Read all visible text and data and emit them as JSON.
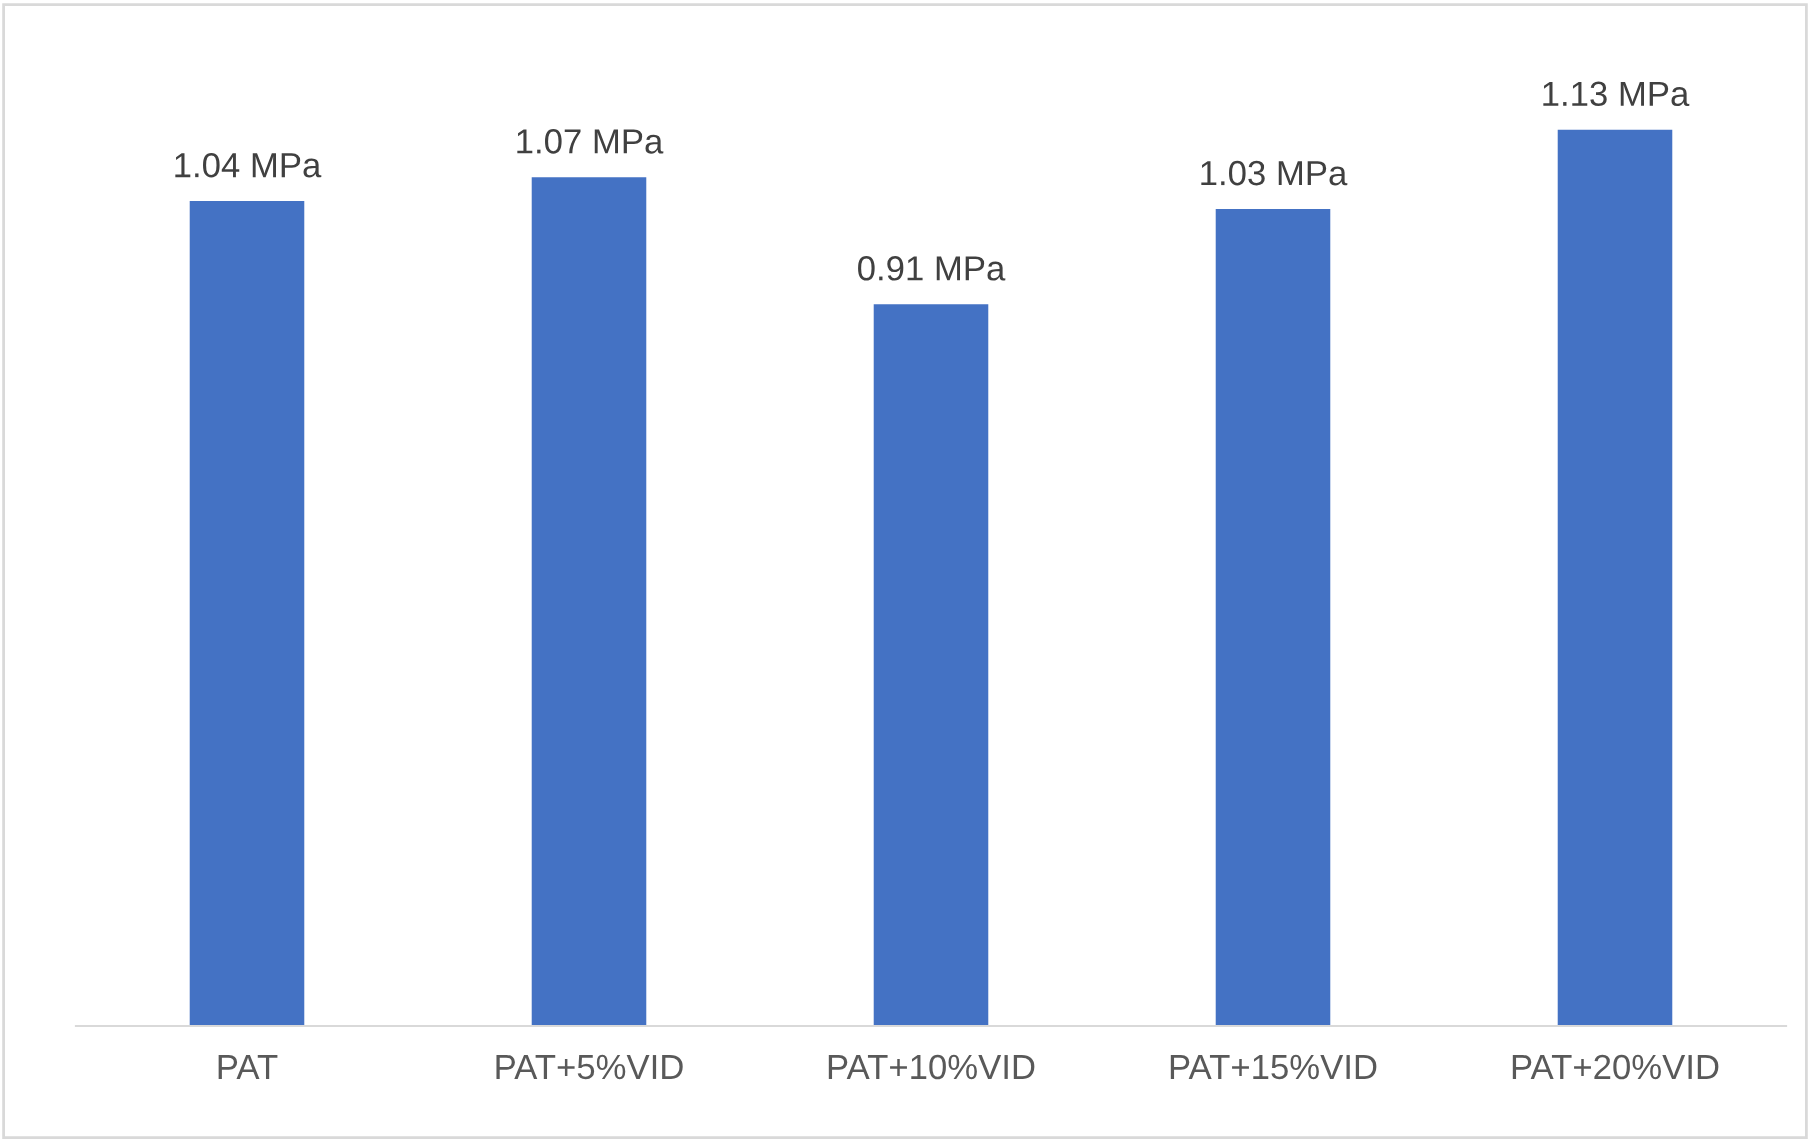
{
  "chart_data": {
    "type": "bar",
    "categories": [
      "PAT",
      "PAT+5%VID",
      "PAT+10%VID",
      "PAT+15%VID",
      "PAT+20%VID"
    ],
    "values": [
      1.04,
      1.07,
      0.91,
      1.03,
      1.13
    ],
    "value_labels": [
      "1.04 MPa",
      "1.07 MPa",
      "0.91 MPa",
      "1.03 MPa",
      "1.13 MPa"
    ],
    "color": "#4472c4",
    "grid": false,
    "legend": false
  }
}
